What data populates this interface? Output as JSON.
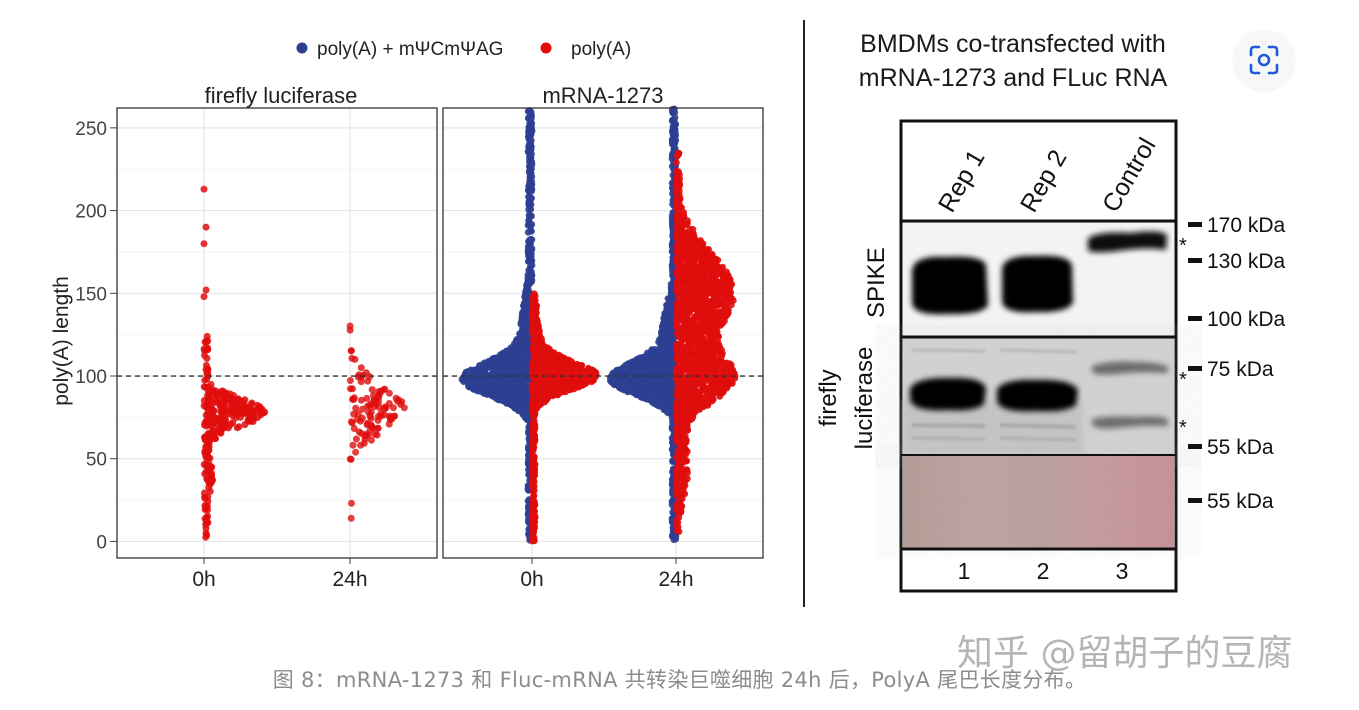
{
  "chart_data": [
    {
      "type": "scatter",
      "subtype": "beeswarm-violin",
      "legend": {
        "placement": "top",
        "entries": [
          {
            "label": "poly(A) + mΨCmΨAG",
            "color": "#2e3f92"
          },
          {
            "label": "poly(A)",
            "color": "#e00d0d"
          }
        ]
      },
      "ylabel": "poly(A) length",
      "yticks": [
        0,
        50,
        100,
        150,
        200,
        250
      ],
      "ylim": [
        -10,
        262
      ],
      "reference_line": 100,
      "grid": true,
      "panels": [
        {
          "title": "firefly luciferase",
          "categories": [
            "0h",
            "24h"
          ],
          "series": [
            {
              "name": "poly(A)",
              "category": "0h",
              "min": 2,
              "max": 213,
              "mode": 78,
              "outliers": [
                213,
                190,
                180,
                152,
                148
              ]
            },
            {
              "name": "poly(A)",
              "category": "24h",
              "min": 14,
              "max": 137,
              "mode": 80
            }
          ]
        },
        {
          "title": "mRNA-1273",
          "categories": [
            "0h",
            "24h"
          ],
          "series": [
            {
              "name": "poly(A) + mΨCmΨAG",
              "category": "0h",
              "min": 0,
              "max": 262,
              "mode": 98
            },
            {
              "name": "poly(A)",
              "category": "0h",
              "min": 0,
              "max": 150,
              "mode": 100
            },
            {
              "name": "poly(A) + mΨCmΨAG",
              "category": "24h",
              "min": 0,
              "max": 262,
              "mode": 98
            },
            {
              "name": "poly(A)",
              "category": "24h",
              "min": 5,
              "max": 235,
              "mode": 140
            }
          ]
        }
      ]
    },
    {
      "type": "table",
      "subtype": "western-blot",
      "title": "BMDMs co-transfected with mRNA-1273 and FLuc RNA",
      "lanes": [
        "Rep 1",
        "Rep 2",
        "Control"
      ],
      "lane_numbers": [
        "1",
        "2",
        "3"
      ],
      "row_labels": [
        "SPIKE",
        "firefly luciferase"
      ],
      "markers": [
        "170 kDa",
        "130 kDa",
        "100 kDa",
        "75 kDa",
        "55 kDa",
        "55 kDa"
      ],
      "asterisks": [
        "*",
        "*",
        "*"
      ]
    }
  ],
  "lens_button": {
    "icon": "lens-icon"
  },
  "caption": "图 8：mRNA-1273 和 Fluc-mRNA 共转染巨噬细胞 24h 后，PolyA 尾巴长度分布。",
  "watermark": "知乎 @留胡子的豆腐"
}
